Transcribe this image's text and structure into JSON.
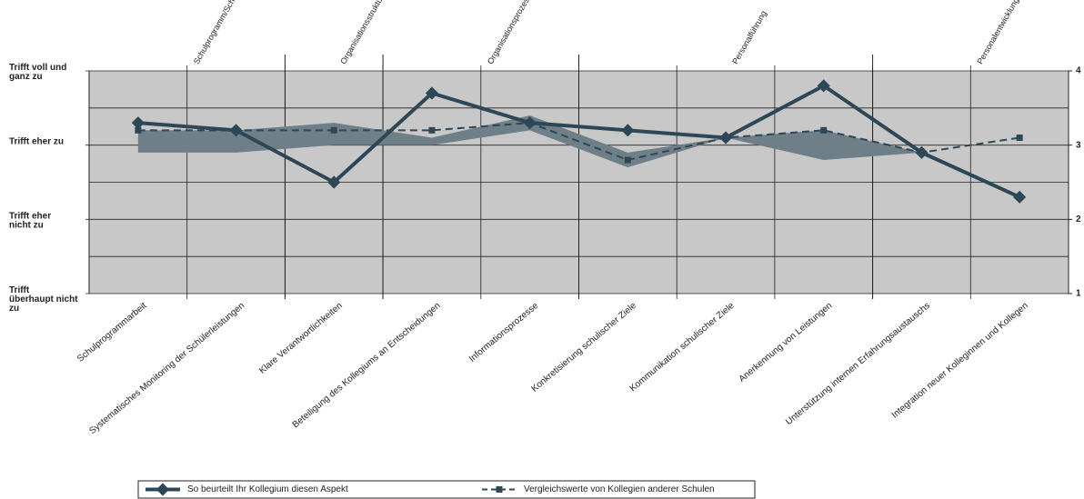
{
  "chart_data": {
    "type": "line",
    "groups": [
      "Schulprogramm/Schulentwicklung",
      "Organisationsstrukturen",
      "Organisationsprozesse",
      "Personalführung",
      "Personalentwicklung"
    ],
    "categories": [
      "Schulprogrammarbeit",
      "Systematisches Monitoring der Schülerleistungen",
      "Klare Verantwortlichkeiten",
      "Beteiligung des Kollegiums an Entscheidungen",
      "Informationsprozesse",
      "Konkretisierung schulischer Ziele",
      "Kommunikation schulischer Ziele",
      "Anerkennung von Leistungen",
      "Unterstützung internen Erfahrungsaustauschs",
      "Integration neuer Kolleginnen und Kollegen"
    ],
    "series": [
      {
        "name": "So beurteilt Ihr Kollegium diesen Aspekt",
        "color": "#2e4756",
        "values": [
          3.3,
          3.2,
          2.5,
          3.7,
          3.3,
          3.2,
          3.1,
          3.8,
          2.9,
          2.3
        ]
      },
      {
        "name": "Vergleichswerte von Kollegien anderer Schulen",
        "color": "#2e4756",
        "dashed": true,
        "values": [
          3.2,
          3.2,
          3.2,
          3.2,
          3.3,
          2.8,
          3.1,
          3.2,
          2.9,
          3.1
        ]
      }
    ],
    "band": {
      "color": "#6e7f87",
      "lower": [
        2.9,
        2.9,
        3.0,
        3.0,
        3.2,
        2.7,
        3.1,
        2.8,
        2.9,
        null
      ],
      "upper": [
        3.2,
        3.2,
        3.3,
        3.1,
        3.4,
        2.9,
        3.1,
        3.2,
        2.9,
        null
      ]
    },
    "ylim": [
      1,
      4
    ],
    "yticks": [
      {
        "value": 4,
        "label": "Trifft voll und ganz zu"
      },
      {
        "value": 3,
        "label": "Trifft eher zu"
      },
      {
        "value": 2,
        "label": "Trifft eher nicht zu"
      },
      {
        "value": 1,
        "label": "Trifft überhaupt nicht zu"
      }
    ],
    "y2lim": [
      1,
      4
    ],
    "y2ticks": [
      1,
      2,
      3,
      4
    ],
    "minor_yticks": [
      1.5,
      2.5,
      3.5
    ],
    "background": "#c8c8c8"
  }
}
